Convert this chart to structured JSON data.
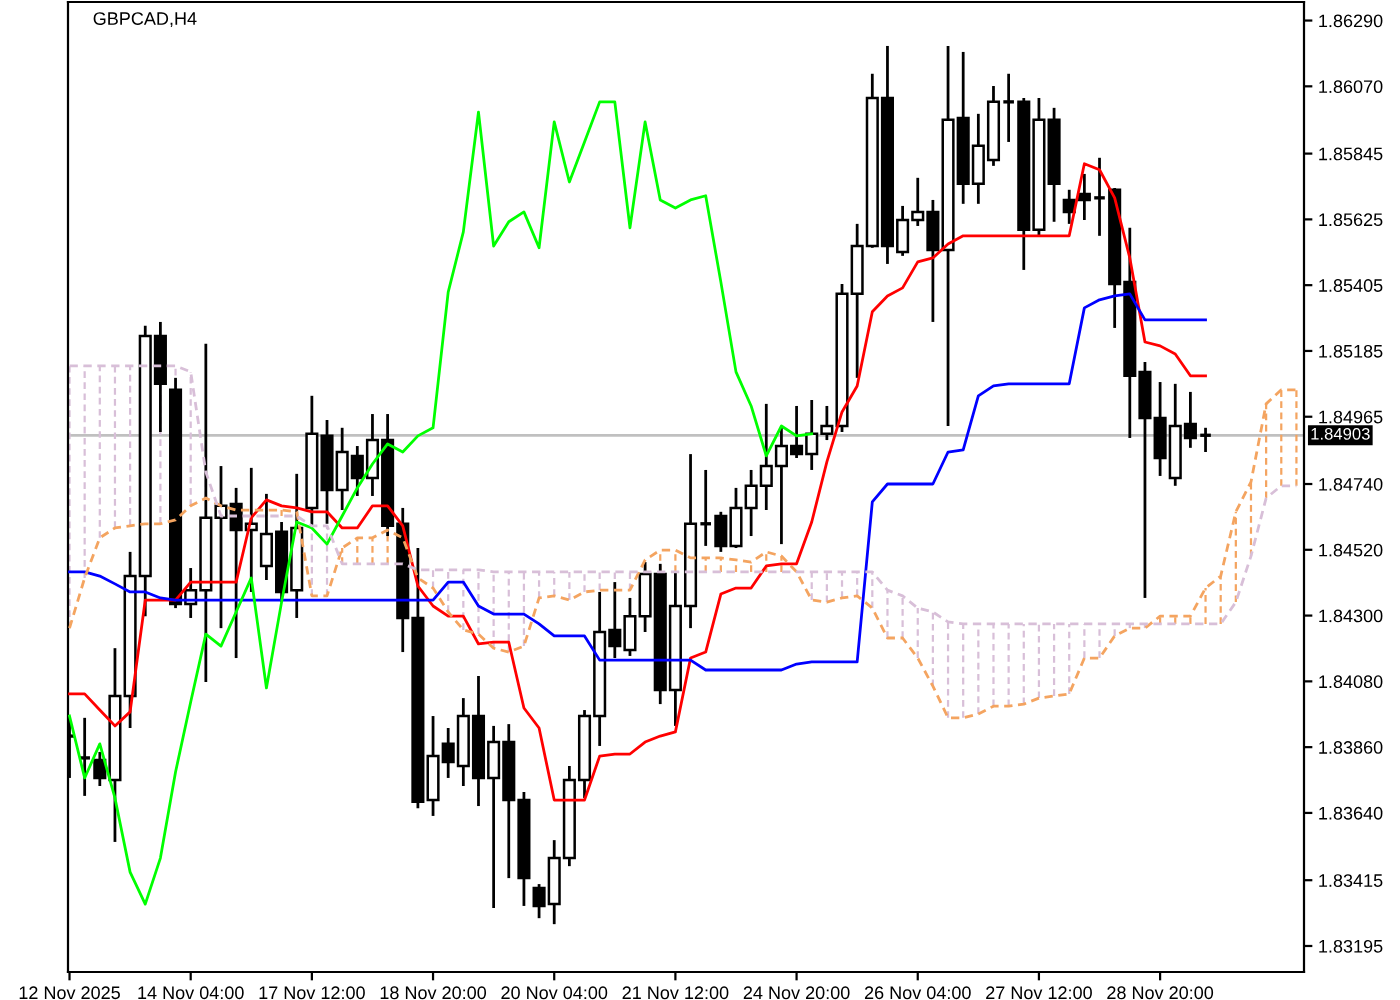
{
  "chart_data": {
    "type": "candlestick",
    "title": "GBPCAD,H4",
    "categories": [
      "12 Nov 2025",
      null,
      null,
      null,
      null,
      null,
      null,
      null,
      "14 Nov 04:00",
      null,
      null,
      null,
      null,
      null,
      null,
      null,
      "17 Nov 12:00",
      null,
      null,
      null,
      null,
      null,
      null,
      null,
      "18 Nov 20:00",
      null,
      null,
      null,
      null,
      null,
      null,
      null,
      "20 Nov 04:00",
      null,
      null,
      null,
      null,
      null,
      null,
      null,
      "21 Nov 12:00",
      null,
      null,
      null,
      null,
      null,
      null,
      null,
      "24 Nov 20:00",
      null,
      null,
      null,
      null,
      null,
      null,
      null,
      "26 Nov 04:00",
      null,
      null,
      null,
      null,
      null,
      null,
      null,
      "27 Nov 12:00",
      null,
      null,
      null,
      null,
      null,
      null,
      null,
      "28 Nov 20:00",
      null,
      null,
      null,
      null,
      null,
      null,
      null,
      null,
      null
    ],
    "ohlc": [
      [
        1.83897,
        1.83958,
        1.83757,
        1.83897
      ],
      [
        1.83824,
        1.83958,
        1.83697,
        1.83824
      ],
      [
        1.83817,
        1.83844,
        1.8373,
        1.83757
      ],
      [
        1.8375,
        1.84191,
        1.83543,
        1.84031
      ],
      [
        1.84031,
        1.84513,
        1.83924,
        1.84432
      ],
      [
        1.84432,
        1.85269,
        1.84298,
        1.85235
      ],
      [
        1.85235,
        1.85282,
        1.84914,
        1.85075
      ],
      [
        1.85055,
        1.85095,
        1.84325,
        1.84339
      ],
      [
        1.84339,
        1.84459,
        1.84292,
        1.84385
      ],
      [
        1.84385,
        1.85209,
        1.84078,
        1.84627
      ],
      [
        1.84627,
        1.848,
        1.84258,
        1.84667
      ],
      [
        1.84673,
        1.84727,
        1.84158,
        1.84586
      ],
      [
        1.84586,
        1.84794,
        1.84379,
        1.84607
      ],
      [
        1.84466,
        1.84707,
        1.84419,
        1.84573
      ],
      [
        1.8458,
        1.84613,
        1.84345,
        1.84379
      ],
      [
        1.84385,
        1.84774,
        1.84292,
        1.84593
      ],
      [
        1.8466,
        1.85035,
        1.846,
        1.84908
      ],
      [
        1.84901,
        1.84954,
        1.84607,
        1.8472
      ],
      [
        1.8472,
        1.84928,
        1.84653,
        1.84847
      ],
      [
        1.84834,
        1.84867,
        1.847,
        1.8476
      ],
      [
        1.8476,
        1.84974,
        1.847,
        1.84887
      ],
      [
        1.84887,
        1.84974,
        1.84566,
        1.846
      ],
      [
        1.84607,
        1.8466,
        1.84178,
        1.84292
      ],
      [
        1.84292,
        1.84526,
        1.83656,
        1.83677
      ],
      [
        1.83683,
        1.83964,
        1.8363,
        1.8383
      ],
      [
        1.83871,
        1.83924,
        1.83757,
        1.8381
      ],
      [
        1.83797,
        1.84024,
        1.8373,
        1.83964
      ],
      [
        1.83964,
        1.84098,
        1.83663,
        1.83757
      ],
      [
        1.83757,
        1.83931,
        1.83322,
        1.83877
      ],
      [
        1.83877,
        1.83937,
        1.83422,
        1.83683
      ],
      [
        1.83683,
        1.8371,
        1.83329,
        1.83422
      ],
      [
        1.83389,
        1.83402,
        1.83288,
        1.83329
      ],
      [
        1.83335,
        1.83549,
        1.83268,
        1.83489
      ],
      [
        1.83489,
        1.83797,
        1.83462,
        1.8375
      ],
      [
        1.8375,
        1.83984,
        1.8369,
        1.83964
      ],
      [
        1.83964,
        1.84379,
        1.83864,
        1.84245
      ],
      [
        1.84252,
        1.84412,
        1.84158,
        1.84198
      ],
      [
        1.84185,
        1.84359,
        1.84165,
        1.84298
      ],
      [
        1.84298,
        1.84479,
        1.84245,
        1.84439
      ],
      [
        1.84439,
        1.84473,
        1.84004,
        1.84051
      ],
      [
        1.84051,
        1.84446,
        1.83931,
        1.84332
      ],
      [
        1.84332,
        1.8484,
        1.84258,
        1.84607
      ],
      [
        1.84607,
        1.84787,
        1.84533,
        1.84607
      ],
      [
        1.84633,
        1.84647,
        1.84513,
        1.84533
      ],
      [
        1.84533,
        1.84727,
        1.84526,
        1.8466
      ],
      [
        1.8466,
        1.84787,
        1.84566,
        1.84734
      ],
      [
        1.84734,
        1.85008,
        1.84653,
        1.848
      ],
      [
        1.848,
        1.84934,
        1.84539,
        1.84867
      ],
      [
        1.84867,
        1.85001,
        1.84827,
        1.8484
      ],
      [
        1.8484,
        1.85021,
        1.84787,
        1.84908
      ],
      [
        1.84908,
        1.85001,
        1.84887,
        1.84934
      ],
      [
        1.84934,
        1.85409,
        1.84914,
        1.85376
      ],
      [
        1.85376,
        1.8561,
        1.85095,
        1.85536
      ],
      [
        1.85536,
        1.86112,
        1.8553,
        1.86031
      ],
      [
        1.86031,
        1.86205,
        1.85476,
        1.85536
      ],
      [
        1.85516,
        1.8567,
        1.85503,
        1.85623
      ],
      [
        1.85623,
        1.85764,
        1.85603,
        1.8565
      ],
      [
        1.8565,
        1.8569,
        1.85282,
        1.85523
      ],
      [
        1.85523,
        1.86205,
        1.84934,
        1.85958
      ],
      [
        1.85964,
        1.86185,
        1.85677,
        1.85744
      ],
      [
        1.85744,
        1.85978,
        1.85677,
        1.85871
      ],
      [
        1.85824,
        1.86071,
        1.85804,
        1.86018
      ],
      [
        1.86018,
        1.86112,
        1.85884,
        1.86018
      ],
      [
        1.86018,
        1.86031,
        1.85456,
        1.8559
      ],
      [
        1.8559,
        1.86031,
        1.8557,
        1.85958
      ],
      [
        1.85958,
        1.85998,
        1.85617,
        1.85744
      ],
      [
        1.8569,
        1.85724,
        1.8561,
        1.8565
      ],
      [
        1.8571,
        1.85777,
        1.85623,
        1.8569
      ],
      [
        1.85697,
        1.85831,
        1.8557,
        1.85697
      ],
      [
        1.85724,
        1.8573,
        1.85262,
        1.85409
      ],
      [
        1.85416,
        1.85597,
        1.84894,
        1.85102
      ],
      [
        1.85115,
        1.85148,
        1.84359,
        1.84961
      ],
      [
        1.84961,
        1.85081,
        1.84767,
        1.84827
      ],
      [
        1.8476,
        1.85075,
        1.84734,
        1.84934
      ],
      [
        1.84941,
        1.85048,
        1.84861,
        1.84894
      ],
      [
        1.84903,
        1.84928,
        1.84847,
        1.84903
      ],
      null,
      null,
      null,
      null,
      null,
      null
    ],
    "series": [
      {
        "type": "line",
        "color": "#ff0000",
        "line_style": "solid",
        "values": [
          1.84038,
          1.84038,
          1.83984,
          1.83931,
          1.83978,
          1.84352,
          1.84352,
          1.84352,
          1.84412,
          1.84412,
          1.84412,
          1.84412,
          1.84627,
          1.84687,
          1.84667,
          1.8466,
          1.84647,
          1.84647,
          1.84593,
          1.84593,
          1.84667,
          1.84667,
          1.846,
          1.84399,
          1.84332,
          1.84298,
          1.84298,
          1.84205,
          1.84211,
          1.84211,
          1.83991,
          1.83924,
          1.83683,
          1.83683,
          1.83683,
          1.8383,
          1.83837,
          1.83837,
          1.83877,
          1.83897,
          1.83911,
          1.84158,
          1.84178,
          1.84372,
          1.84392,
          1.84392,
          1.84466,
          1.84473,
          1.84473,
          1.84613,
          1.84814,
          1.84981,
          1.85068,
          1.85316,
          1.85369,
          1.85396,
          1.85483,
          1.85496,
          1.85543,
          1.8557,
          1.8557,
          1.8557,
          1.8557,
          1.8557,
          1.8557,
          1.8557,
          1.8557,
          1.85811,
          1.85791,
          1.85697,
          1.85496,
          1.85215,
          1.85202,
          1.85175,
          1.85102,
          1.85102,
          null,
          null,
          null,
          null,
          null,
          null
        ]
      },
      {
        "type": "line",
        "color": "#0000ff",
        "line_style": "solid",
        "values": [
          1.84446,
          1.84446,
          1.84432,
          1.84406,
          1.84379,
          1.84379,
          1.84359,
          1.84352,
          1.84352,
          1.84352,
          1.84352,
          1.84352,
          1.84352,
          1.84352,
          1.84352,
          1.84352,
          1.84352,
          1.84352,
          1.84352,
          1.84352,
          1.84352,
          1.84352,
          1.84352,
          1.84352,
          1.84352,
          1.84412,
          1.84412,
          1.84332,
          1.84305,
          1.84305,
          1.84305,
          1.84272,
          1.84232,
          1.84232,
          1.84232,
          1.84151,
          1.84151,
          1.84151,
          1.84151,
          1.84151,
          1.84151,
          1.84151,
          1.84118,
          1.84118,
          1.84118,
          1.84118,
          1.84118,
          1.84118,
          1.84138,
          1.84145,
          1.84145,
          1.84145,
          1.84145,
          1.8468,
          1.8474,
          1.8474,
          1.8474,
          1.8474,
          1.84847,
          1.84854,
          1.85035,
          1.85068,
          1.85075,
          1.85075,
          1.85075,
          1.85075,
          1.85075,
          1.85329,
          1.85356,
          1.85369,
          1.85376,
          1.85289,
          1.85289,
          1.85289,
          1.85289,
          1.85289,
          null,
          null,
          null,
          null,
          null,
          null
        ]
      },
      {
        "type": "line",
        "color": "#00ff00",
        "line_style": "solid",
        "values": [
          1.83964,
          1.83757,
          1.83871,
          1.8369,
          1.83442,
          1.83335,
          1.83489,
          1.83777,
          1.84011,
          1.84238,
          1.84198,
          1.84312,
          1.84426,
          1.84058,
          1.84345,
          1.84613,
          1.84593,
          1.84539,
          1.84633,
          1.84727,
          1.84807,
          1.84874,
          1.84847,
          1.84901,
          1.84928,
          1.85382,
          1.85583,
          1.85984,
          1.85536,
          1.85617,
          1.8565,
          1.8553,
          1.85951,
          1.8575,
          1.85884,
          1.86018,
          1.86018,
          1.85597,
          1.85951,
          1.8569,
          1.85663,
          1.8569,
          1.85704,
          1.85416,
          1.85115,
          1.85001,
          1.84834,
          1.84934,
          1.84901,
          1.84908,
          null,
          null,
          null,
          null,
          null,
          null,
          null,
          null,
          null,
          null,
          null,
          null,
          null,
          null,
          null,
          null,
          null,
          null,
          null,
          null,
          null,
          null,
          null,
          null,
          null,
          null,
          null,
          null,
          null,
          null,
          null,
          null
        ]
      },
      {
        "type": "line",
        "color": "#f4a460",
        "line_style": "dashed",
        "values": [
          1.84258,
          1.84426,
          1.8456,
          1.84593,
          1.846,
          1.84607,
          1.84607,
          1.8462,
          1.84667,
          1.84693,
          1.84667,
          1.84653,
          1.84653,
          1.84653,
          1.84653,
          1.84647,
          1.84366,
          1.84366,
          1.84526,
          1.8456,
          1.8456,
          1.84586,
          1.8456,
          1.84426,
          1.84392,
          1.84312,
          1.84252,
          1.84238,
          1.84191,
          1.84178,
          1.84198,
          1.84359,
          1.84366,
          1.84352,
          1.84379,
          1.84385,
          1.84385,
          1.84385,
          1.84486,
          1.84519,
          1.84519,
          1.84493,
          1.84493,
          1.84493,
          1.84486,
          1.84479,
          1.84513,
          1.84499,
          1.84446,
          1.84352,
          1.84345,
          1.84359,
          1.84366,
          1.84325,
          1.84225,
          1.84225,
          1.84158,
          1.84064,
          1.83958,
          1.83958,
          1.83971,
          1.83997,
          1.83997,
          1.84004,
          1.84024,
          1.84031,
          1.84038,
          1.84158,
          1.84158,
          1.84232,
          1.84258,
          1.84258,
          1.84298,
          1.84298,
          1.84298,
          1.84392,
          1.84432,
          1.84647,
          1.84747,
          1.85008,
          1.85055,
          1.85055
        ]
      },
      {
        "type": "line",
        "color": "#d8bfd8",
        "line_style": "dashed",
        "values": [
          1.85135,
          1.85135,
          1.85135,
          1.85135,
          1.85135,
          1.85135,
          1.85135,
          1.85135,
          1.85115,
          1.8478,
          1.84633,
          1.84633,
          1.84633,
          1.84633,
          1.84633,
          1.84633,
          1.846,
          1.846,
          1.84473,
          1.84473,
          1.84473,
          1.84473,
          1.84473,
          1.84453,
          1.84453,
          1.84453,
          1.84453,
          1.84453,
          1.84446,
          1.84446,
          1.84446,
          1.84446,
          1.84446,
          1.84446,
          1.84446,
          1.84446,
          1.84446,
          1.84446,
          1.84446,
          1.84446,
          1.84446,
          1.84446,
          1.84446,
          1.84446,
          1.84446,
          1.84446,
          1.84446,
          1.84446,
          1.84446,
          1.84446,
          1.84446,
          1.84446,
          1.84446,
          1.84446,
          1.84385,
          1.84366,
          1.84325,
          1.84312,
          1.84279,
          1.84272,
          1.84272,
          1.84272,
          1.84272,
          1.84272,
          1.84272,
          1.84272,
          1.84272,
          1.84272,
          1.84272,
          1.84272,
          1.84272,
          1.84272,
          1.84272,
          1.84272,
          1.84272,
          1.84272,
          1.84272,
          1.84345,
          1.84499,
          1.84693,
          1.84734,
          1.84734
        ]
      }
    ],
    "ylim": [
      1.83108,
      1.86352
    ],
    "yticks": [
      {
        "value": 1.8629,
        "label": "1.86290"
      },
      {
        "value": 1.8607,
        "label": "1.86070"
      },
      1.85845,
      1.85625,
      1.85405,
      1.85185,
      1.84965,
      {
        "value": 1.8474,
        "label": "1.84740"
      },
      {
        "value": 1.8452,
        "label": "1.84520"
      },
      {
        "value": 1.843,
        "label": "1.84300"
      },
      {
        "value": 1.8408,
        "label": "1.84080"
      },
      {
        "value": 1.8386,
        "label": "1.83860"
      },
      {
        "value": 1.8364,
        "label": "1.83640"
      },
      1.83415,
      1.83195
    ],
    "ref_lines": [
      {
        "axis": "y",
        "value": 1.84903,
        "label": "1.84903",
        "color": "#c0c0c0"
      }
    ],
    "grid": false,
    "legend": false
  }
}
